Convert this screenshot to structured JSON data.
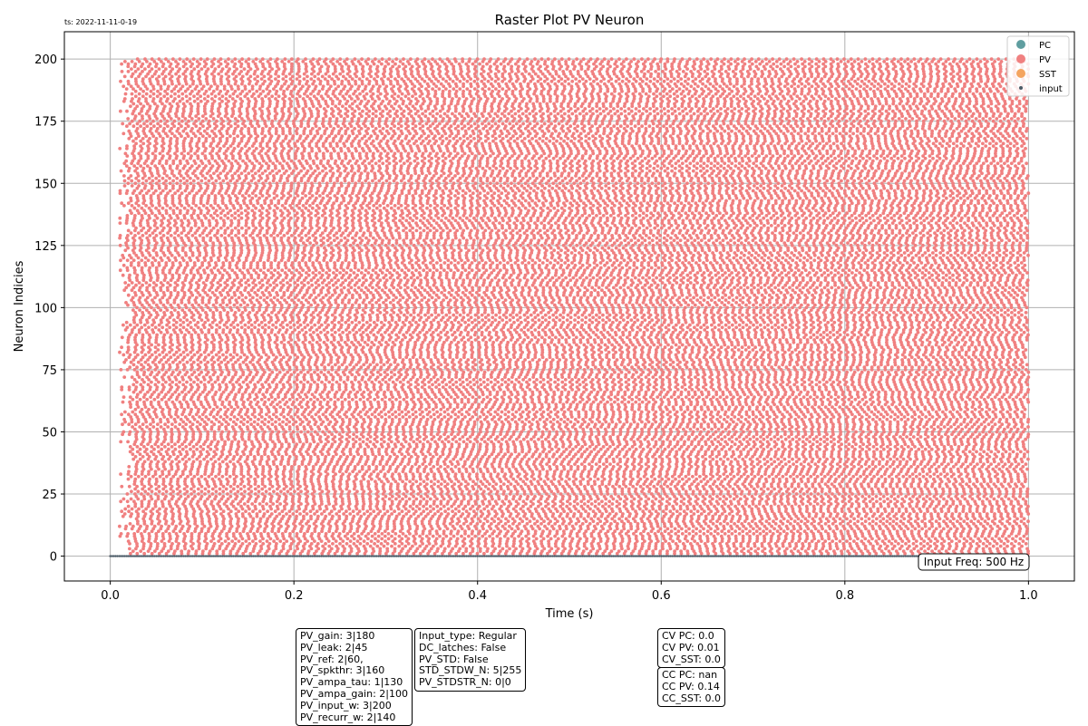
{
  "timestamp": "ts: 2022-11-11-0-19",
  "input_freq_label": "Input Freq: 500 Hz",
  "params_box_1": [
    "PV_gain: 3|180",
    "PV_leak: 2|45",
    "PV_ref: 2|60,",
    "PV_spkthr: 3|160",
    "PV_ampa_tau: 1|130",
    "PV_ampa_gain: 2|100",
    "PV_input_w: 3|200",
    "PV_recurr_w: 2|140"
  ],
  "params_box_2": [
    "Input_type: Regular",
    "DC_latches: False",
    "PV_STD: False",
    "STD_STDW_N: 5|255",
    "PV_STDSTR_N: 0|0"
  ],
  "cv_box": [
    "CV PC: 0.0",
    "CV PV: 0.01",
    "CV_SST: 0.0"
  ],
  "cc_box": [
    "CC PC: nan",
    "CC PV: 0.14",
    "CC_SST: 0.0"
  ],
  "colors": {
    "PC": "#5f9ea0",
    "PV": "#f08080",
    "SST": "#f4a460",
    "input": "#4a5a66",
    "grid": "#b0b0b0"
  },
  "chart_data": {
    "type": "scatter",
    "title": "Raster Plot PV Neuron",
    "xlabel": "Time (s)",
    "ylabel": "Neuron Indicies",
    "xlim": [
      -0.05,
      1.05
    ],
    "ylim": [
      -10,
      211
    ],
    "xticks": [
      0.0,
      0.2,
      0.4,
      0.6,
      0.8,
      1.0
    ],
    "xtick_labels": [
      "0.0",
      "0.2",
      "0.4",
      "0.6",
      "0.8",
      "1.0"
    ],
    "yticks": [
      0,
      25,
      50,
      75,
      100,
      125,
      150,
      175,
      200
    ],
    "ytick_labels": [
      "0",
      "25",
      "50",
      "75",
      "100",
      "125",
      "150",
      "175",
      "200"
    ],
    "grid": true,
    "legend_position": "top-right",
    "legend": [
      {
        "label": "PC",
        "color": "#5f9ea0",
        "marker": "large-dot"
      },
      {
        "label": "PV",
        "color": "#f08080",
        "marker": "large-dot"
      },
      {
        "label": "SST",
        "color": "#f4a460",
        "marker": "large-dot"
      },
      {
        "label": "input",
        "color": "#4a5a66",
        "marker": "small-dot"
      }
    ],
    "series": [
      {
        "name": "PV",
        "neuron_range": [
          1,
          200
        ],
        "time_range": [
          0.01,
          1.0
        ],
        "approx_rate_hz": 130
      },
      {
        "name": "input",
        "neuron_index": 0,
        "time_range": [
          0.0,
          1.0
        ],
        "rate_hz": 500
      }
    ]
  }
}
